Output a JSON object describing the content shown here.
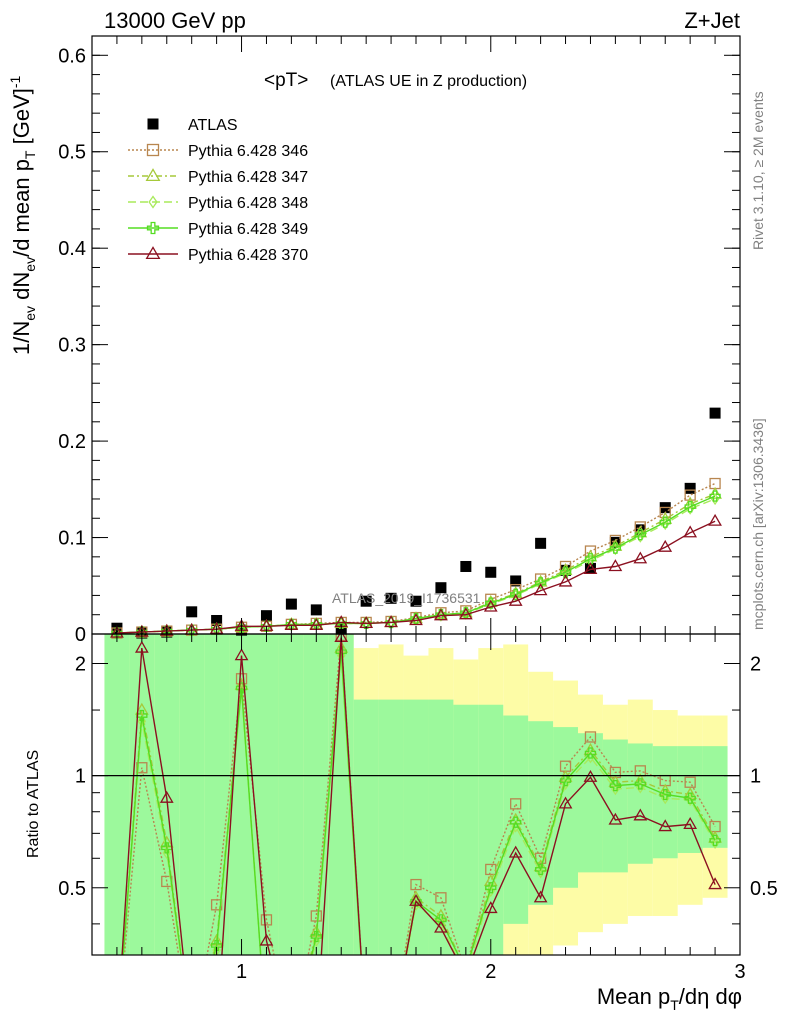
{
  "header": {
    "left": "13000 GeV pp",
    "right": "Z+Jet"
  },
  "side": {
    "rivet": "Rivet 3.1.10, ≥ 2M events",
    "mcplots": "mcplots.cern.ch [arXiv:1306.3436]"
  },
  "plot_title": {
    "main": "<pT>",
    "sub": "(ATLAS UE in Z production)"
  },
  "watermark": "ATLAS_2019_I1736531",
  "axes": {
    "ylabel_main_parts": [
      "1/N",
      "ev",
      " dN",
      "ev",
      "/d mean p",
      "T",
      " [GeV]",
      "-1"
    ],
    "ylabel_ratio": "Ratio to ATLAS",
    "xlabel_parts": [
      "Mean p",
      "T",
      "/dη dφ"
    ]
  },
  "colors": {
    "atlas": "#000000",
    "s346": "#b8864f",
    "s347": "#a6c93a",
    "s348": "#a8ea5a",
    "s349": "#55dd22",
    "s370": "#8b1020",
    "band_inner": "#9cf99c",
    "band_outer": "#fdfca6"
  },
  "chart_data": [
    {
      "type": "scatter",
      "panel": "main",
      "x": [
        0.5,
        0.6,
        0.7,
        0.8,
        0.9,
        1.0,
        1.1,
        1.2,
        1.3,
        1.4,
        1.5,
        1.6,
        1.7,
        1.8,
        1.9,
        2.0,
        2.1,
        2.2,
        2.3,
        2.4,
        2.5,
        2.6,
        2.7,
        2.8,
        2.9
      ],
      "xlim": [
        0.4,
        3.0
      ],
      "ylim": [
        0,
        0.62
      ],
      "yticks": [
        "0",
        "0.1",
        "0.2",
        "0.3",
        "0.4",
        "0.5",
        "0.6"
      ],
      "xticks": [
        "1",
        "2",
        "3"
      ],
      "series": [
        {
          "name": "ATLAS",
          "marker": "square",
          "values": [
            0.006,
            0.001,
            0.002,
            0.023,
            0.014,
            0.004,
            0.019,
            0.031,
            0.025,
            0.005,
            0.034,
            0.037,
            0.034,
            0.048,
            0.07,
            0.064,
            0.055,
            0.094,
            0.066,
            0.068,
            0.095,
            0.108,
            0.131,
            0.151,
            0.229
          ]
        },
        {
          "name": "Pythia 6.428 346",
          "marker": "open-square",
          "values": [
            0.001,
            0.002,
            0.003,
            0.004,
            0.005,
            0.007,
            0.008,
            0.01,
            0.011,
            0.012,
            0.012,
            0.013,
            0.017,
            0.022,
            0.024,
            0.036,
            0.046,
            0.057,
            0.07,
            0.086,
            0.097,
            0.111,
            0.126,
            0.144,
            0.156
          ]
        },
        {
          "name": "Pythia 6.428 347",
          "marker": "open-triangle",
          "values": [
            0.001,
            0.002,
            0.003,
            0.004,
            0.005,
            0.007,
            0.008,
            0.01,
            0.01,
            0.011,
            0.011,
            0.012,
            0.016,
            0.02,
            0.022,
            0.033,
            0.042,
            0.054,
            0.066,
            0.08,
            0.091,
            0.105,
            0.119,
            0.135,
            0.145
          ]
        },
        {
          "name": "Pythia 6.428 348",
          "marker": "open-diamond",
          "values": [
            0.001,
            0.002,
            0.003,
            0.004,
            0.005,
            0.007,
            0.008,
            0.009,
            0.01,
            0.011,
            0.011,
            0.012,
            0.015,
            0.019,
            0.021,
            0.031,
            0.04,
            0.052,
            0.063,
            0.076,
            0.088,
            0.101,
            0.114,
            0.13,
            0.14
          ]
        },
        {
          "name": "Pythia 6.428 349",
          "marker": "open-cross",
          "values": [
            0.001,
            0.002,
            0.003,
            0.004,
            0.005,
            0.007,
            0.008,
            0.01,
            0.01,
            0.011,
            0.011,
            0.012,
            0.016,
            0.02,
            0.022,
            0.032,
            0.041,
            0.053,
            0.064,
            0.078,
            0.089,
            0.103,
            0.116,
            0.132,
            0.143
          ]
        },
        {
          "name": "Pythia 6.428 370",
          "marker": "open-triangle",
          "values": [
            0.001,
            0.002,
            0.003,
            0.004,
            0.005,
            0.008,
            0.008,
            0.009,
            0.009,
            0.012,
            0.011,
            0.012,
            0.014,
            0.019,
            0.02,
            0.028,
            0.034,
            0.045,
            0.054,
            0.067,
            0.07,
            0.078,
            0.09,
            0.105,
            0.117
          ]
        }
      ]
    },
    {
      "type": "line",
      "panel": "ratio",
      "x": [
        0.5,
        0.6,
        0.7,
        0.8,
        0.9,
        1.0,
        1.1,
        1.2,
        1.3,
        1.4,
        1.5,
        1.6,
        1.7,
        1.8,
        1.9,
        2.0,
        2.1,
        2.2,
        2.3,
        2.4,
        2.5,
        2.6,
        2.7,
        2.8,
        2.9
      ],
      "xlim": [
        0.4,
        3.0
      ],
      "ylim": [
        0.33,
        2.4
      ],
      "log_scale": true,
      "yticks": [
        "0.5",
        "1",
        "2"
      ],
      "reference_line": 1.0,
      "series": [
        {
          "name": "Pythia 6.428 346",
          "values": [
            0.2,
            1.05,
            0.52,
            0.2,
            0.45,
            1.82,
            0.41,
            0.2,
            0.42,
            2.38,
            0.2,
            0.2,
            0.51,
            0.47,
            0.3,
            0.56,
            0.84,
            0.6,
            1.06,
            1.27,
            1.02,
            1.03,
            0.97,
            0.96,
            0.73
          ]
        },
        {
          "name": "Pythia 6.428 347",
          "values": [
            0.2,
            1.5,
            0.66,
            0.2,
            0.36,
            1.75,
            0.2,
            0.2,
            0.38,
            2.2,
            0.2,
            0.2,
            0.47,
            0.42,
            0.3,
            0.52,
            0.76,
            0.57,
            0.99,
            1.17,
            0.96,
            0.97,
            0.91,
            0.89,
            0.68
          ]
        },
        {
          "name": "Pythia 6.428 348",
          "values": [
            0.2,
            1.4,
            0.62,
            0.2,
            0.34,
            1.7,
            0.2,
            0.2,
            0.36,
            2.1,
            0.2,
            0.2,
            0.45,
            0.4,
            0.29,
            0.49,
            0.73,
            0.55,
            0.95,
            1.12,
            0.92,
            0.93,
            0.87,
            0.86,
            0.66
          ]
        },
        {
          "name": "Pythia 6.428 349",
          "values": [
            0.2,
            1.45,
            0.64,
            0.2,
            0.35,
            1.72,
            0.2,
            0.2,
            0.37,
            2.15,
            0.2,
            0.2,
            0.46,
            0.41,
            0.3,
            0.5,
            0.75,
            0.56,
            0.97,
            1.15,
            0.94,
            0.95,
            0.89,
            0.87,
            0.67
          ]
        },
        {
          "name": "Pythia 6.428 370",
          "values": [
            0.2,
            2.2,
            0.87,
            0.2,
            0.2,
            2.1,
            0.36,
            0.2,
            0.2,
            2.35,
            0.2,
            0.2,
            0.46,
            0.39,
            0.29,
            0.44,
            0.62,
            0.47,
            0.84,
            0.99,
            0.76,
            0.78,
            0.73,
            0.74,
            0.51
          ]
        }
      ],
      "band_inner": [
        [
          0.2,
          2.4
        ],
        [
          0.2,
          2.4
        ],
        [
          0.2,
          2.4
        ],
        [
          0.2,
          2.4
        ],
        [
          0.2,
          2.4
        ],
        [
          0.2,
          2.4
        ],
        [
          0.2,
          2.4
        ],
        [
          0.2,
          2.4
        ],
        [
          0.2,
          2.4
        ],
        [
          0.2,
          2.4
        ],
        [
          0.2,
          1.6
        ],
        [
          0.2,
          1.6
        ],
        [
          0.2,
          1.6
        ],
        [
          0.2,
          1.6
        ],
        [
          0.2,
          1.55
        ],
        [
          0.2,
          1.55
        ],
        [
          0.4,
          1.45
        ],
        [
          0.45,
          1.4
        ],
        [
          0.5,
          1.35
        ],
        [
          0.55,
          1.3
        ],
        [
          0.55,
          1.25
        ],
        [
          0.58,
          1.22
        ],
        [
          0.6,
          1.2
        ],
        [
          0.62,
          1.2
        ],
        [
          0.64,
          1.2
        ]
      ],
      "band_outer": [
        [
          0.2,
          2.4
        ],
        [
          0.2,
          2.4
        ],
        [
          0.2,
          2.4
        ],
        [
          0.2,
          2.4
        ],
        [
          0.2,
          2.4
        ],
        [
          0.2,
          2.4
        ],
        [
          0.2,
          2.4
        ],
        [
          0.2,
          2.4
        ],
        [
          0.2,
          2.4
        ],
        [
          0.2,
          2.4
        ],
        [
          0.2,
          2.2
        ],
        [
          0.2,
          2.25
        ],
        [
          0.2,
          2.1
        ],
        [
          0.2,
          2.2
        ],
        [
          0.2,
          2.05
        ],
        [
          0.2,
          2.2
        ],
        [
          0.25,
          2.25
        ],
        [
          0.3,
          1.9
        ],
        [
          0.35,
          1.8
        ],
        [
          0.38,
          1.65
        ],
        [
          0.4,
          1.55
        ],
        [
          0.42,
          1.6
        ],
        [
          0.42,
          1.5
        ],
        [
          0.45,
          1.45
        ],
        [
          0.47,
          1.45
        ]
      ]
    }
  ]
}
